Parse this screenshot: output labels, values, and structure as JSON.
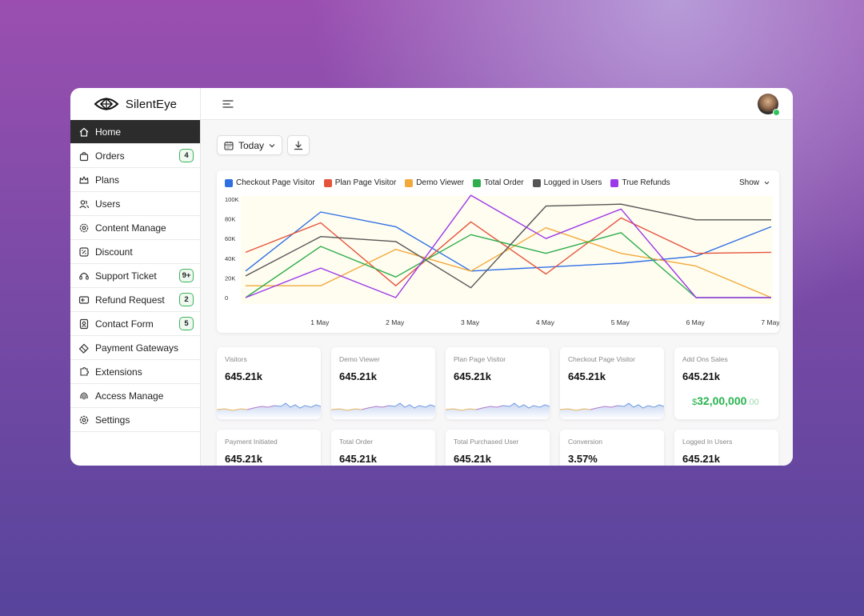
{
  "brand": {
    "name": "SilentEye"
  },
  "sidebar": {
    "items": [
      {
        "key": "home",
        "label": "Home",
        "icon": "home-icon",
        "active": true
      },
      {
        "key": "orders",
        "label": "Orders",
        "icon": "shopping-bag-icon",
        "badge": "4"
      },
      {
        "key": "plans",
        "label": "Plans",
        "icon": "crown-icon"
      },
      {
        "key": "users",
        "label": "Users",
        "icon": "users-icon"
      },
      {
        "key": "content-manage",
        "label": "Content Manage",
        "icon": "gear-badge-icon"
      },
      {
        "key": "discount",
        "label": "Discount",
        "icon": "discount-icon"
      },
      {
        "key": "support-ticket",
        "label": "Support Ticket",
        "icon": "headset-icon",
        "badge": "9+"
      },
      {
        "key": "refund-request",
        "label": "Refund Request",
        "icon": "refund-icon",
        "badge": "2"
      },
      {
        "key": "contact-form",
        "label": "Contact Form",
        "icon": "contact-icon",
        "badge": "5"
      },
      {
        "key": "payment-gateways",
        "label": "Payment Gateways",
        "icon": "card-icon"
      },
      {
        "key": "extensions",
        "label": "Extensions",
        "icon": "puzzle-icon"
      },
      {
        "key": "access-manage",
        "label": "Access Manage",
        "icon": "fingerprint-icon"
      },
      {
        "key": "settings",
        "label": "Settings",
        "icon": "gear-icon"
      }
    ]
  },
  "toolbar": {
    "date_range": "Today"
  },
  "chart": {
    "show_label": "Show",
    "colors": [
      "#2f6fe4",
      "#e5533a",
      "#f2a93b",
      "#2fae4e",
      "#555555",
      "#9b38e8"
    ]
  },
  "chart_data": {
    "type": "line",
    "title": "",
    "x": [
      "",
      "1 May",
      "2 May",
      "3 May",
      "4 May",
      "5 May",
      "6 May",
      "7 May"
    ],
    "ylim": [
      0,
      100000
    ],
    "yticks": [
      "100K",
      "80K",
      "60K",
      "40K",
      "20K",
      "0"
    ],
    "grid": false,
    "legend": "top-left",
    "series": [
      {
        "name": "Checkout Page Visitor",
        "values": [
          27000,
          87000,
          72000,
          27000,
          31000,
          35000,
          42000,
          72000
        ]
      },
      {
        "name": "Plan Page Visitor",
        "values": [
          46000,
          76000,
          12000,
          77000,
          24000,
          81000,
          45000,
          46000
        ]
      },
      {
        "name": "Demo Viewer",
        "values": [
          12000,
          12000,
          49000,
          27000,
          71000,
          45000,
          32000,
          0
        ]
      },
      {
        "name": "Total Order",
        "values": [
          0,
          52000,
          21000,
          64000,
          45000,
          66000,
          0,
          0
        ]
      },
      {
        "name": "Logged in Users",
        "values": [
          22000,
          62000,
          57000,
          10000,
          93000,
          95000,
          79000,
          79000
        ]
      },
      {
        "name": "True Refunds",
        "values": [
          0,
          30000,
          0,
          104000,
          60000,
          90000,
          0,
          0
        ]
      }
    ]
  },
  "stats": [
    {
      "label": "Visitors",
      "value": "645.21k"
    },
    {
      "label": "Demo Viewer",
      "value": "645.21k"
    },
    {
      "label": "Plan Page Visitor",
      "value": "645.21k"
    },
    {
      "label": "Checkout Page Visitor",
      "value": "645.21k"
    },
    {
      "label": "Add Ons Sales",
      "value": "645.21k",
      "money_symbol": "$",
      "money_main": "32,00,000",
      "money_cents": ".00"
    },
    {
      "label": "Payment Initiated",
      "value": "645.21k"
    },
    {
      "label": "Total Order",
      "value": "645.21k"
    },
    {
      "label": "Total Purchased User",
      "value": "645.21k"
    },
    {
      "label": "Conversion",
      "value": "3.57%"
    },
    {
      "label": "Logged In Users",
      "value": "645.21k"
    }
  ]
}
